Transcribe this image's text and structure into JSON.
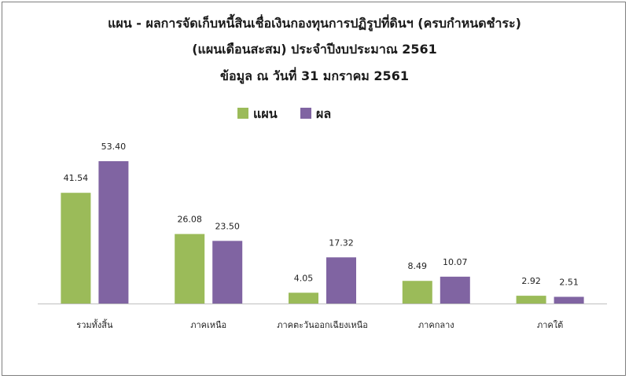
{
  "chart_data": {
    "type": "bar",
    "title_lines": [
      "แผน - ผลการจัดเก็บหนี้สินเชื่อเงินกองทุนการปฏิรูปที่ดินฯ (ครบกำหนดชำระ)",
      "(แผนเดือนสะสม)  ประจำปีงบประมาณ 2561",
      "ข้อมูล ณ วันที่ 31 มกราคม 2561"
    ],
    "categories": [
      "รวมทั้งสิ้น",
      "ภาคเหนือ",
      "ภาคตะวันออกเฉียงเหนือ",
      "ภาคกลาง",
      "ภาคใต้"
    ],
    "series": [
      {
        "name": "แผน",
        "color": "#9bbb59",
        "values": [
          41.54,
          26.08,
          4.05,
          8.49,
          2.92
        ],
        "labels": [
          "41.54",
          "26.08",
          "4.05",
          "8.49",
          "2.92"
        ]
      },
      {
        "name": "ผล",
        "color": "#8064a2",
        "values": [
          53.4,
          23.5,
          17.32,
          10.07,
          2.51
        ],
        "labels": [
          "53.40",
          "23.50",
          "17.32",
          "10.07",
          "2.51"
        ]
      }
    ],
    "ylim": [
      0,
      60
    ],
    "grid": false,
    "legend_position": "top-center",
    "xlabel": "",
    "ylabel": ""
  }
}
